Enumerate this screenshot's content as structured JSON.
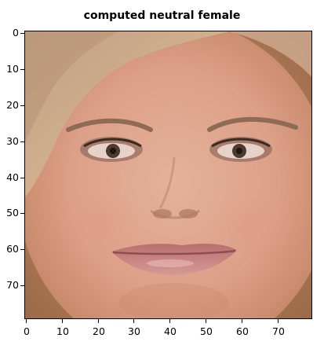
{
  "figure": {
    "title": "computed neutral female"
  },
  "axes": {
    "y_ticks": [
      "0",
      "10",
      "20",
      "30",
      "40",
      "50",
      "60",
      "70"
    ],
    "x_ticks": [
      "0",
      "10",
      "20",
      "30",
      "40",
      "50",
      "60",
      "70"
    ],
    "y_tick_values": [
      0,
      10,
      20,
      30,
      40,
      50,
      60,
      70
    ],
    "x_tick_values": [
      0,
      10,
      20,
      30,
      40,
      50,
      60,
      70
    ],
    "xlim": [
      -0.5,
      79.5
    ],
    "ylim": [
      79.5,
      -0.5
    ]
  },
  "image": {
    "subject": "face-photo",
    "colors": {
      "skin": "#d9a288",
      "hair": "#c9a27c",
      "background_edge": "#b07a58",
      "lips": "#c98a8a"
    }
  }
}
